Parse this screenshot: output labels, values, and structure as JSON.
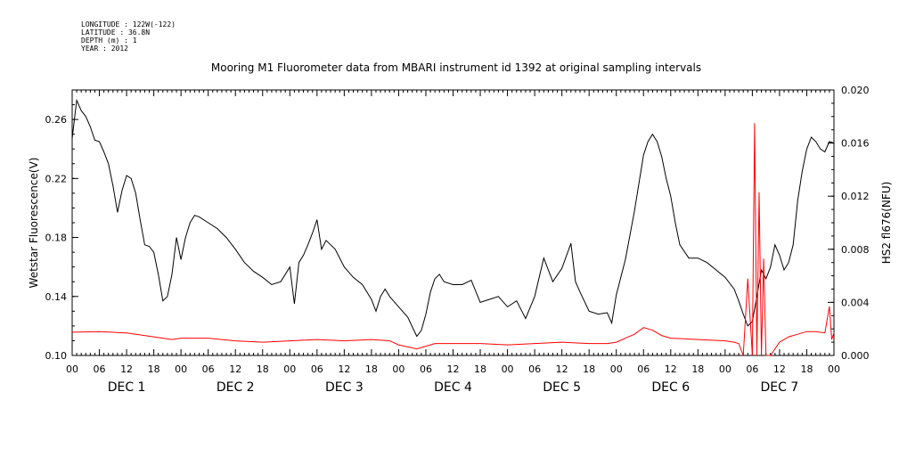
{
  "meta": {
    "longitude": "LONGITUDE : 122W(-122)",
    "latitude": "LATITUDE : 36.8N",
    "depth": "DEPTH (m) : 1",
    "year": "YEAR : 2012"
  },
  "chart_data": {
    "type": "line",
    "title": "Mooring M1 Fluorometer data from MBARI instrument id 1392 at original sampling intervals",
    "ylabel_left": "Wetstar Fluorescence(V)",
    "ylabel_right": "HS2 fl676(NFU)",
    "ylim_left": [
      0.1,
      0.28
    ],
    "ylim_right": [
      0.0,
      0.02
    ],
    "yticks_left": [
      "0.10",
      "0.14",
      "0.18",
      "0.22",
      "0.26"
    ],
    "yticks_right": [
      "0.000",
      "0.004",
      "0.008",
      "0.012",
      "0.016",
      "0.020"
    ],
    "x_unit": "hours since DEC 1 00",
    "xlim": [
      0,
      168
    ],
    "hour_ticks": [
      "00",
      "06",
      "12",
      "18",
      "00",
      "06",
      "12",
      "18",
      "00",
      "06",
      "12",
      "18",
      "00",
      "06",
      "12",
      "18",
      "00",
      "06",
      "12",
      "18",
      "00",
      "06",
      "12",
      "18",
      "00",
      "06",
      "12",
      "18",
      "00"
    ],
    "day_labels": [
      "DEC 1",
      "DEC 2",
      "DEC 3",
      "DEC 4",
      "DEC 5",
      "DEC 6",
      "DEC 7"
    ],
    "colors": {
      "left_series": "#000000",
      "right_series": "#ff0000",
      "right_axis_label": "#ff0000"
    },
    "series": [
      {
        "axis": "left",
        "points": [
          [
            0,
            0.247
          ],
          [
            0.5,
            0.26
          ],
          [
            1,
            0.273
          ],
          [
            2,
            0.266
          ],
          [
            3,
            0.262
          ],
          [
            4,
            0.255
          ],
          [
            5,
            0.246
          ],
          [
            6,
            0.245
          ],
          [
            7,
            0.238
          ],
          [
            8,
            0.23
          ],
          [
            9,
            0.215
          ],
          [
            10,
            0.197
          ],
          [
            11,
            0.212
          ],
          [
            12,
            0.222
          ],
          [
            13,
            0.22
          ],
          [
            14,
            0.21
          ],
          [
            15,
            0.192
          ],
          [
            16,
            0.175
          ],
          [
            17,
            0.174
          ],
          [
            18,
            0.17
          ],
          [
            19,
            0.155
          ],
          [
            20,
            0.137
          ],
          [
            21,
            0.14
          ],
          [
            22,
            0.155
          ],
          [
            23,
            0.18
          ],
          [
            24,
            0.165
          ],
          [
            25,
            0.18
          ],
          [
            26,
            0.19
          ],
          [
            27,
            0.195
          ],
          [
            28,
            0.194
          ],
          [
            30,
            0.19
          ],
          [
            32,
            0.186
          ],
          [
            34,
            0.18
          ],
          [
            36,
            0.172
          ],
          [
            38,
            0.163
          ],
          [
            40,
            0.157
          ],
          [
            42,
            0.153
          ],
          [
            44,
            0.148
          ],
          [
            46,
            0.15
          ],
          [
            48,
            0.16
          ],
          [
            49,
            0.135
          ],
          [
            50,
            0.163
          ],
          [
            51,
            0.168
          ],
          [
            52,
            0.175
          ],
          [
            53,
            0.183
          ],
          [
            54,
            0.192
          ],
          [
            55,
            0.172
          ],
          [
            56,
            0.178
          ],
          [
            57,
            0.175
          ],
          [
            58,
            0.172
          ],
          [
            60,
            0.16
          ],
          [
            62,
            0.153
          ],
          [
            64,
            0.148
          ],
          [
            66,
            0.138
          ],
          [
            67,
            0.13
          ],
          [
            68,
            0.14
          ],
          [
            69,
            0.145
          ],
          [
            70,
            0.14
          ],
          [
            72,
            0.133
          ],
          [
            74,
            0.126
          ],
          [
            76,
            0.113
          ],
          [
            77,
            0.117
          ],
          [
            78,
            0.128
          ],
          [
            79,
            0.143
          ],
          [
            80,
            0.152
          ],
          [
            81,
            0.155
          ],
          [
            82,
            0.15
          ],
          [
            84,
            0.148
          ],
          [
            86,
            0.148
          ],
          [
            88,
            0.151
          ],
          [
            90,
            0.136
          ],
          [
            92,
            0.138
          ],
          [
            94,
            0.14
          ],
          [
            96,
            0.133
          ],
          [
            98,
            0.137
          ],
          [
            100,
            0.125
          ],
          [
            102,
            0.14
          ],
          [
            104,
            0.166
          ],
          [
            106,
            0.15
          ],
          [
            108,
            0.159
          ],
          [
            110,
            0.176
          ],
          [
            111,
            0.15
          ],
          [
            112,
            0.143
          ],
          [
            114,
            0.13
          ],
          [
            116,
            0.128
          ],
          [
            118,
            0.129
          ],
          [
            119,
            0.122
          ],
          [
            120,
            0.141
          ],
          [
            122,
            0.165
          ],
          [
            124,
            0.198
          ],
          [
            126,
            0.236
          ],
          [
            127,
            0.245
          ],
          [
            128,
            0.25
          ],
          [
            129,
            0.245
          ],
          [
            130,
            0.235
          ],
          [
            131,
            0.22
          ],
          [
            132,
            0.208
          ],
          [
            133,
            0.19
          ],
          [
            134,
            0.175
          ],
          [
            136,
            0.166
          ],
          [
            138,
            0.166
          ],
          [
            140,
            0.163
          ],
          [
            142,
            0.158
          ],
          [
            144,
            0.153
          ],
          [
            146,
            0.145
          ],
          [
            147,
            0.137
          ],
          [
            148,
            0.128
          ],
          [
            149,
            0.12
          ],
          [
            150,
            0.123
          ],
          [
            151,
            0.14
          ],
          [
            152,
            0.158
          ],
          [
            153,
            0.152
          ],
          [
            154,
            0.16
          ],
          [
            155,
            0.175
          ],
          [
            156,
            0.168
          ],
          [
            157,
            0.158
          ],
          [
            158,
            0.163
          ],
          [
            159,
            0.175
          ],
          [
            160,
            0.205
          ],
          [
            161,
            0.225
          ],
          [
            162,
            0.24
          ],
          [
            163,
            0.248
          ],
          [
            164,
            0.245
          ],
          [
            165,
            0.24
          ],
          [
            166,
            0.238
          ],
          [
            167,
            0.245
          ],
          [
            168,
            0.244
          ]
        ]
      },
      {
        "axis": "right",
        "points": [
          [
            0,
            0.00175
          ],
          [
            6,
            0.0018
          ],
          [
            12,
            0.0017
          ],
          [
            18,
            0.0014
          ],
          [
            22,
            0.0012
          ],
          [
            24,
            0.0013
          ],
          [
            30,
            0.0013
          ],
          [
            36,
            0.0011
          ],
          [
            42,
            0.001
          ],
          [
            48,
            0.0011
          ],
          [
            54,
            0.0012
          ],
          [
            60,
            0.0011
          ],
          [
            66,
            0.0012
          ],
          [
            70,
            0.0011
          ],
          [
            72,
            0.0008
          ],
          [
            76,
            0.0005
          ],
          [
            80,
            0.0009
          ],
          [
            84,
            0.0009
          ],
          [
            90,
            0.0009
          ],
          [
            96,
            0.0008
          ],
          [
            102,
            0.0009
          ],
          [
            108,
            0.001
          ],
          [
            114,
            0.0009
          ],
          [
            118,
            0.0009
          ],
          [
            120,
            0.001
          ],
          [
            122,
            0.0013
          ],
          [
            124,
            0.0016
          ],
          [
            126,
            0.0021
          ],
          [
            128,
            0.0019
          ],
          [
            130,
            0.0015
          ],
          [
            132,
            0.0013
          ],
          [
            138,
            0.0012
          ],
          [
            144,
            0.0011
          ],
          [
            146,
            0.001
          ],
          [
            147,
            0.0009
          ],
          [
            148,
            0.0
          ],
          [
            149,
            0.0058
          ],
          [
            150,
            0.0
          ],
          [
            150.5,
            0.0175
          ],
          [
            151,
            0.0
          ],
          [
            151.5,
            0.0123
          ],
          [
            152,
            0.0
          ],
          [
            152.5,
            0.0073
          ],
          [
            153,
            0.0
          ],
          [
            154,
            0.0
          ],
          [
            155,
            0.0005
          ],
          [
            156,
            0.001
          ],
          [
            158,
            0.0014
          ],
          [
            160,
            0.0016
          ],
          [
            162,
            0.0018
          ],
          [
            164,
            0.0018
          ],
          [
            166,
            0.0017
          ],
          [
            167,
            0.0037
          ],
          [
            167.5,
            0.0012
          ],
          [
            168,
            0.0017
          ]
        ]
      }
    ]
  }
}
